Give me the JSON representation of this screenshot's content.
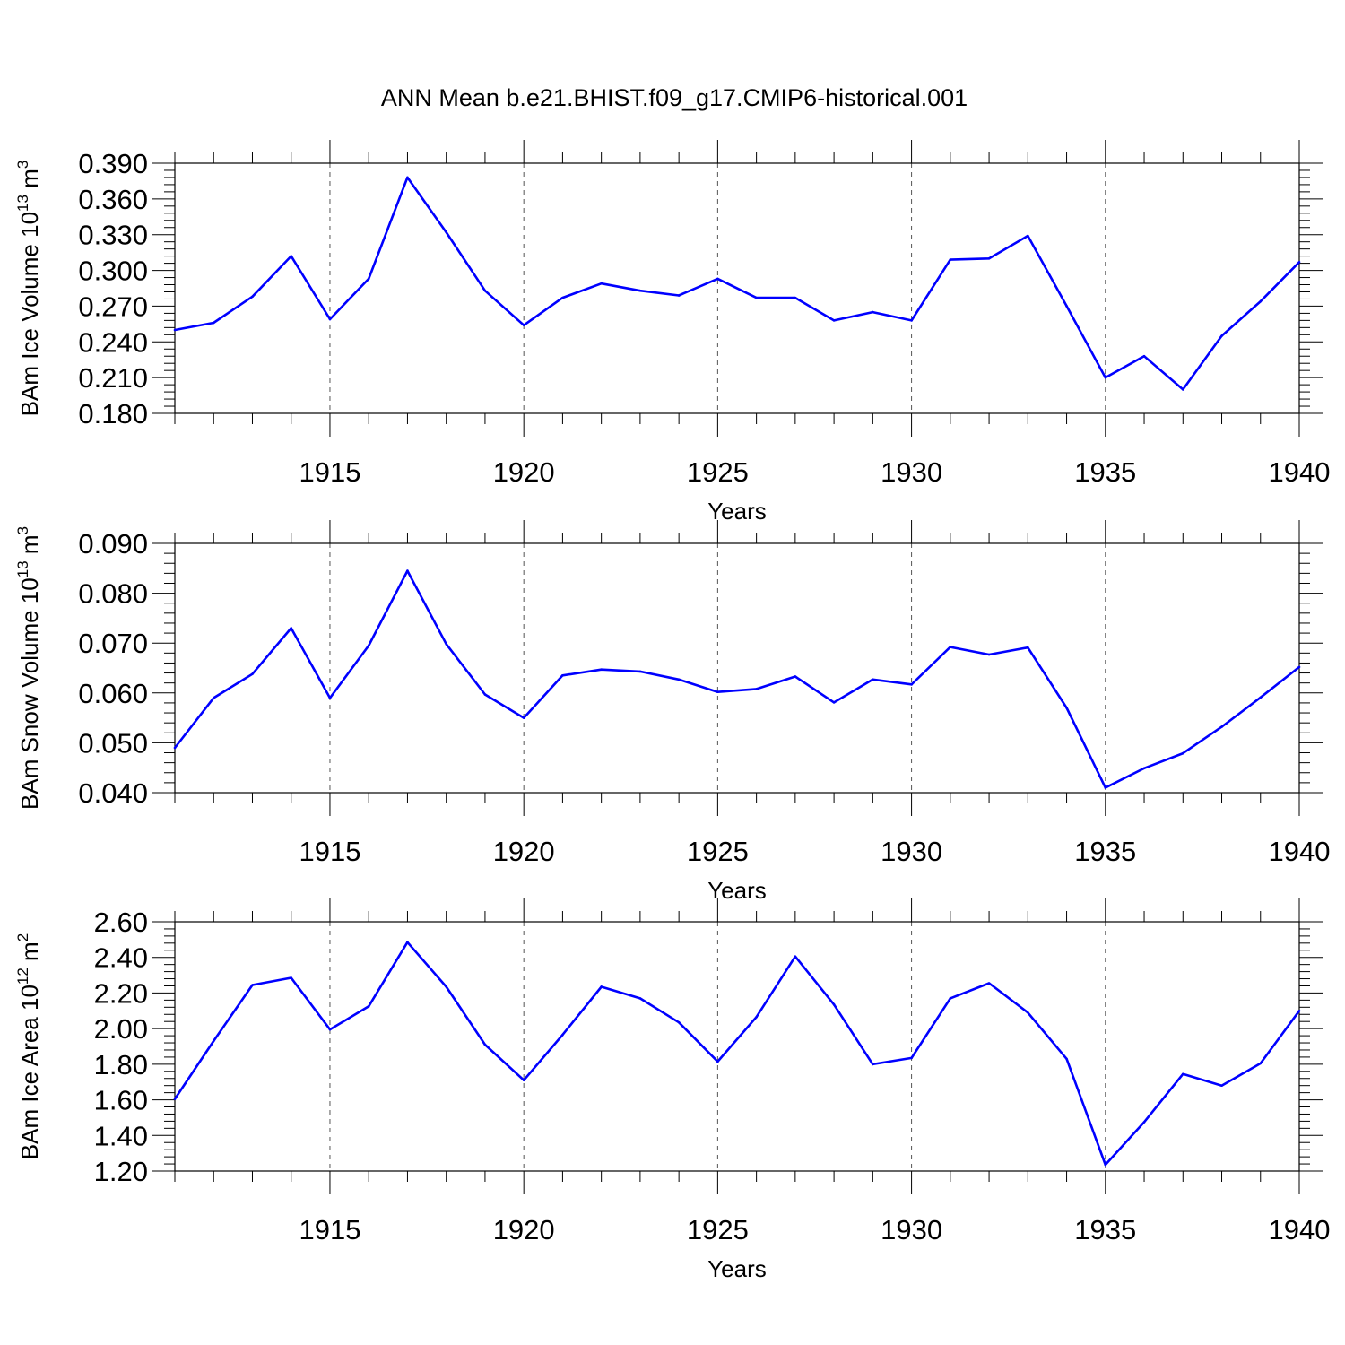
{
  "chart_data": {
    "title": "ANN Mean b.e21.BHIST.f09_g17.CMIP6-historical.001",
    "panels": [
      {
        "type": "line",
        "ylabel": "BAm Ice Volume 10",
        "ylabel_exp": "13",
        "ylabel_unit": " m",
        "ylabel_unit_exp": "3",
        "xlabel": "Years",
        "xlim": [
          1911,
          1940
        ],
        "ylim": [
          0.18,
          0.39
        ],
        "yticks": [
          "0.180",
          "0.210",
          "0.240",
          "0.270",
          "0.300",
          "0.330",
          "0.360",
          "0.390"
        ],
        "xticks": [
          "1915",
          "1920",
          "1925",
          "1930",
          "1935",
          "1940"
        ],
        "x": [
          1911,
          1912,
          1913,
          1914,
          1915,
          1916,
          1917,
          1918,
          1919,
          1920,
          1921,
          1922,
          1923,
          1924,
          1925,
          1926,
          1927,
          1928,
          1929,
          1930,
          1931,
          1932,
          1933,
          1934,
          1935,
          1936,
          1937,
          1938,
          1939,
          1940
        ],
        "values": [
          0.25,
          0.256,
          0.278,
          0.312,
          0.259,
          0.293,
          0.378,
          0.332,
          0.283,
          0.254,
          0.277,
          0.289,
          0.283,
          0.279,
          0.293,
          0.277,
          0.277,
          0.258,
          0.265,
          0.258,
          0.309,
          0.31,
          0.329,
          0.27,
          0.21,
          0.228,
          0.2,
          0.245,
          0.274,
          0.307
        ],
        "grid_x": "dashed at labeled years",
        "line_color": "#0000ff"
      },
      {
        "type": "line",
        "ylabel": "BAm Snow Volume 10",
        "ylabel_exp": "13",
        "ylabel_unit": " m",
        "ylabel_unit_exp": "3",
        "xlabel": "Years",
        "xlim": [
          1911,
          1940
        ],
        "ylim": [
          0.04,
          0.09
        ],
        "yticks": [
          "0.040",
          "0.050",
          "0.060",
          "0.070",
          "0.080",
          "0.090"
        ],
        "xticks": [
          "1915",
          "1920",
          "1925",
          "1930",
          "1935",
          "1940"
        ],
        "x": [
          1911,
          1912,
          1913,
          1914,
          1915,
          1916,
          1917,
          1918,
          1919,
          1920,
          1921,
          1922,
          1923,
          1924,
          1925,
          1926,
          1927,
          1928,
          1929,
          1930,
          1931,
          1932,
          1933,
          1934,
          1935,
          1936,
          1937,
          1938,
          1939,
          1940
        ],
        "values": [
          0.049,
          0.059,
          0.0638,
          0.073,
          0.059,
          0.0695,
          0.0845,
          0.0698,
          0.0597,
          0.055,
          0.0635,
          0.0647,
          0.0643,
          0.0627,
          0.0602,
          0.0608,
          0.0633,
          0.0581,
          0.0627,
          0.0617,
          0.0692,
          0.0677,
          0.0691,
          0.057,
          0.041,
          0.0449,
          0.0479,
          0.0532,
          0.0591,
          0.0652
        ],
        "grid_x": "dashed at labeled years",
        "line_color": "#0000ff"
      },
      {
        "type": "line",
        "ylabel": "BAm Ice Area 10",
        "ylabel_exp": "12",
        "ylabel_unit": " m",
        "ylabel_unit_exp": "2",
        "xlabel": "Years",
        "xlim": [
          1911,
          1940
        ],
        "ylim": [
          1.2,
          2.6
        ],
        "yticks": [
          "1.20",
          "1.40",
          "1.60",
          "1.80",
          "2.00",
          "2.20",
          "2.40",
          "2.60"
        ],
        "xticks": [
          "1915",
          "1920",
          "1925",
          "1930",
          "1935",
          "1940"
        ],
        "x": [
          1911,
          1912,
          1913,
          1914,
          1915,
          1916,
          1917,
          1918,
          1919,
          1920,
          1921,
          1922,
          1923,
          1924,
          1925,
          1926,
          1927,
          1928,
          1929,
          1930,
          1931,
          1932,
          1933,
          1934,
          1935,
          1936,
          1937,
          1938,
          1939,
          1940
        ],
        "values": [
          1.605,
          1.93,
          2.245,
          2.285,
          1.995,
          2.125,
          2.485,
          2.235,
          1.91,
          1.71,
          1.965,
          2.235,
          2.17,
          2.035,
          1.815,
          2.065,
          2.405,
          2.135,
          1.8,
          1.835,
          2.17,
          2.255,
          2.09,
          1.83,
          1.235,
          1.475,
          1.745,
          1.68,
          1.805,
          2.1
        ],
        "grid_x": "dashed at labeled years",
        "line_color": "#0000ff"
      }
    ]
  }
}
